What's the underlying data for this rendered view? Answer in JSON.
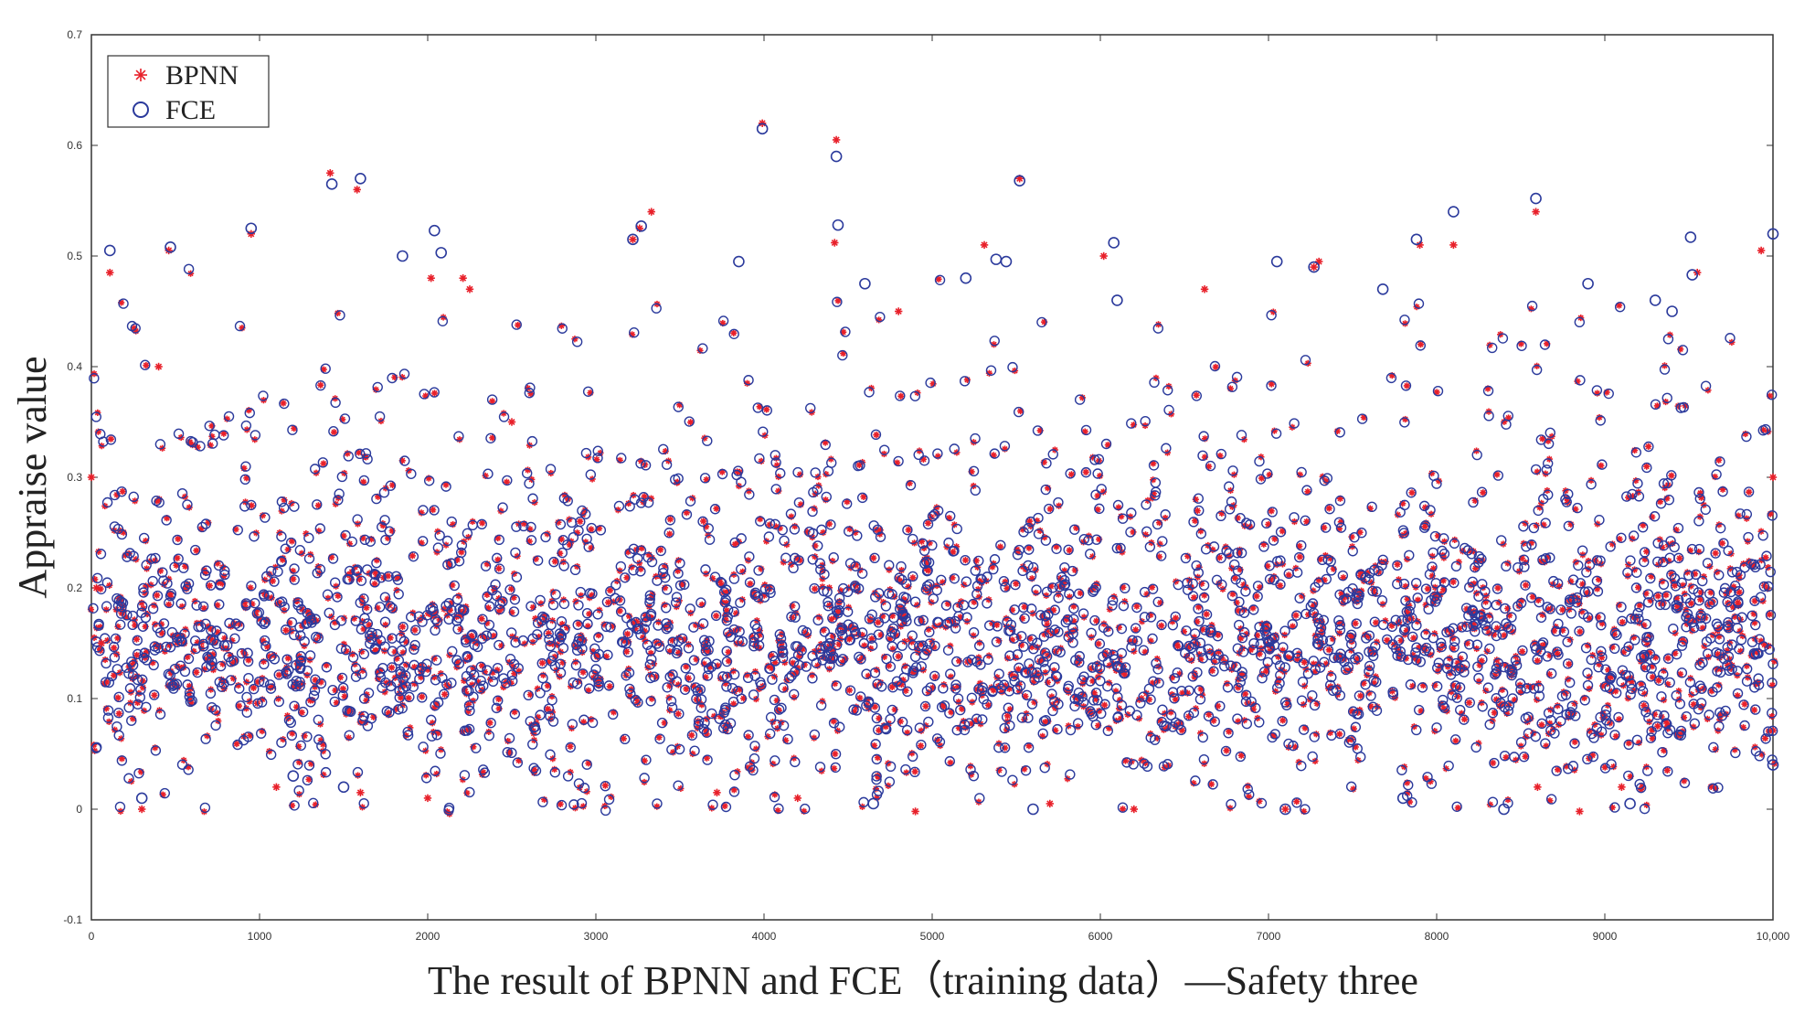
{
  "chart_data": {
    "type": "scatter",
    "title": "",
    "xlabel": "The result of BPNN and FCE（training data）—Safety three",
    "ylabel": "Appraise value",
    "xlim": [
      0,
      10000
    ],
    "ylim": [
      -0.1,
      0.7
    ],
    "x_ticks": [
      0,
      1000,
      2000,
      3000,
      4000,
      5000,
      6000,
      7000,
      8000,
      9000,
      10000
    ],
    "x_tick_labels": [
      "0",
      "1000",
      "2000",
      "3000",
      "4000",
      "5000",
      "6000",
      "7000",
      "8000",
      "9000",
      "10,000"
    ],
    "y_ticks": [
      -0.1,
      0,
      0.1,
      0.2,
      0.3,
      0.4,
      0.5,
      0.6,
      0.7
    ],
    "y_tick_labels": [
      "-0.1",
      "0",
      "0.1",
      "0.2",
      "0.3",
      "0.4",
      "0.5",
      "0.6",
      "0.7"
    ],
    "grid": false,
    "legend": {
      "position": "top-left",
      "entries": [
        "BPNN",
        "FCE"
      ]
    },
    "series": [
      {
        "name": "BPNN",
        "marker": "asterisk",
        "color": "#e8202a",
        "x": [
          1420,
          1580,
          3330,
          3990,
          4430,
          4420,
          5520,
          8590,
          9930,
          5310,
          7900,
          950,
          110,
          460,
          3260,
          3220,
          2020,
          8100,
          9550,
          2210,
          2250,
          6620,
          7300,
          7270,
          6020,
          1600,
          1100,
          2000,
          8600,
          9100,
          3720,
          4900,
          10000,
          0,
          30,
          60,
          400,
          2500,
          4800,
          7100,
          8850,
          6200,
          5700,
          4200,
          300
        ],
        "values": [
          0.575,
          0.56,
          0.54,
          0.62,
          0.605,
          0.512,
          0.57,
          0.54,
          0.505,
          0.51,
          0.51,
          0.52,
          0.485,
          0.505,
          0.525,
          0.515,
          0.48,
          0.51,
          0.485,
          0.48,
          0.47,
          0.47,
          0.495,
          0.49,
          0.5,
          0.015,
          0.02,
          0.01,
          0.02,
          0.02,
          0.015,
          -0.002,
          0.3,
          0.3,
          0.2,
          0.15,
          0.4,
          0.35,
          0.45,
          0.0,
          -0.002,
          0.0,
          0.005,
          0.01,
          0.0
        ]
      },
      {
        "name": "FCE",
        "marker": "circle",
        "color": "#2b3a9c",
        "x": [
          1430,
          1600,
          3990,
          4430,
          4440,
          5520,
          8590,
          10000,
          8100,
          950,
          110,
          470,
          3220,
          3270,
          2040,
          2080,
          1850,
          7880,
          9510,
          5440,
          5380,
          6080,
          7050,
          7270,
          7680,
          8900,
          9520,
          6100,
          4600,
          3850,
          5200,
          9300,
          9400,
          10000,
          1500,
          8400,
          5600,
          4650,
          7100,
          7800,
          9150,
          1200,
          300
        ],
        "values": [
          0.565,
          0.57,
          0.615,
          0.59,
          0.528,
          0.568,
          0.552,
          0.52,
          0.54,
          0.525,
          0.505,
          0.508,
          0.515,
          0.527,
          0.523,
          0.503,
          0.5,
          0.515,
          0.517,
          0.495,
          0.497,
          0.512,
          0.495,
          0.49,
          0.47,
          0.475,
          0.483,
          0.46,
          0.475,
          0.495,
          0.48,
          0.46,
          0.45,
          0.04,
          0.02,
          0.0,
          0.0,
          0.005,
          0.0,
          0.01,
          0.005,
          0.03,
          0.01
        ]
      }
    ]
  }
}
